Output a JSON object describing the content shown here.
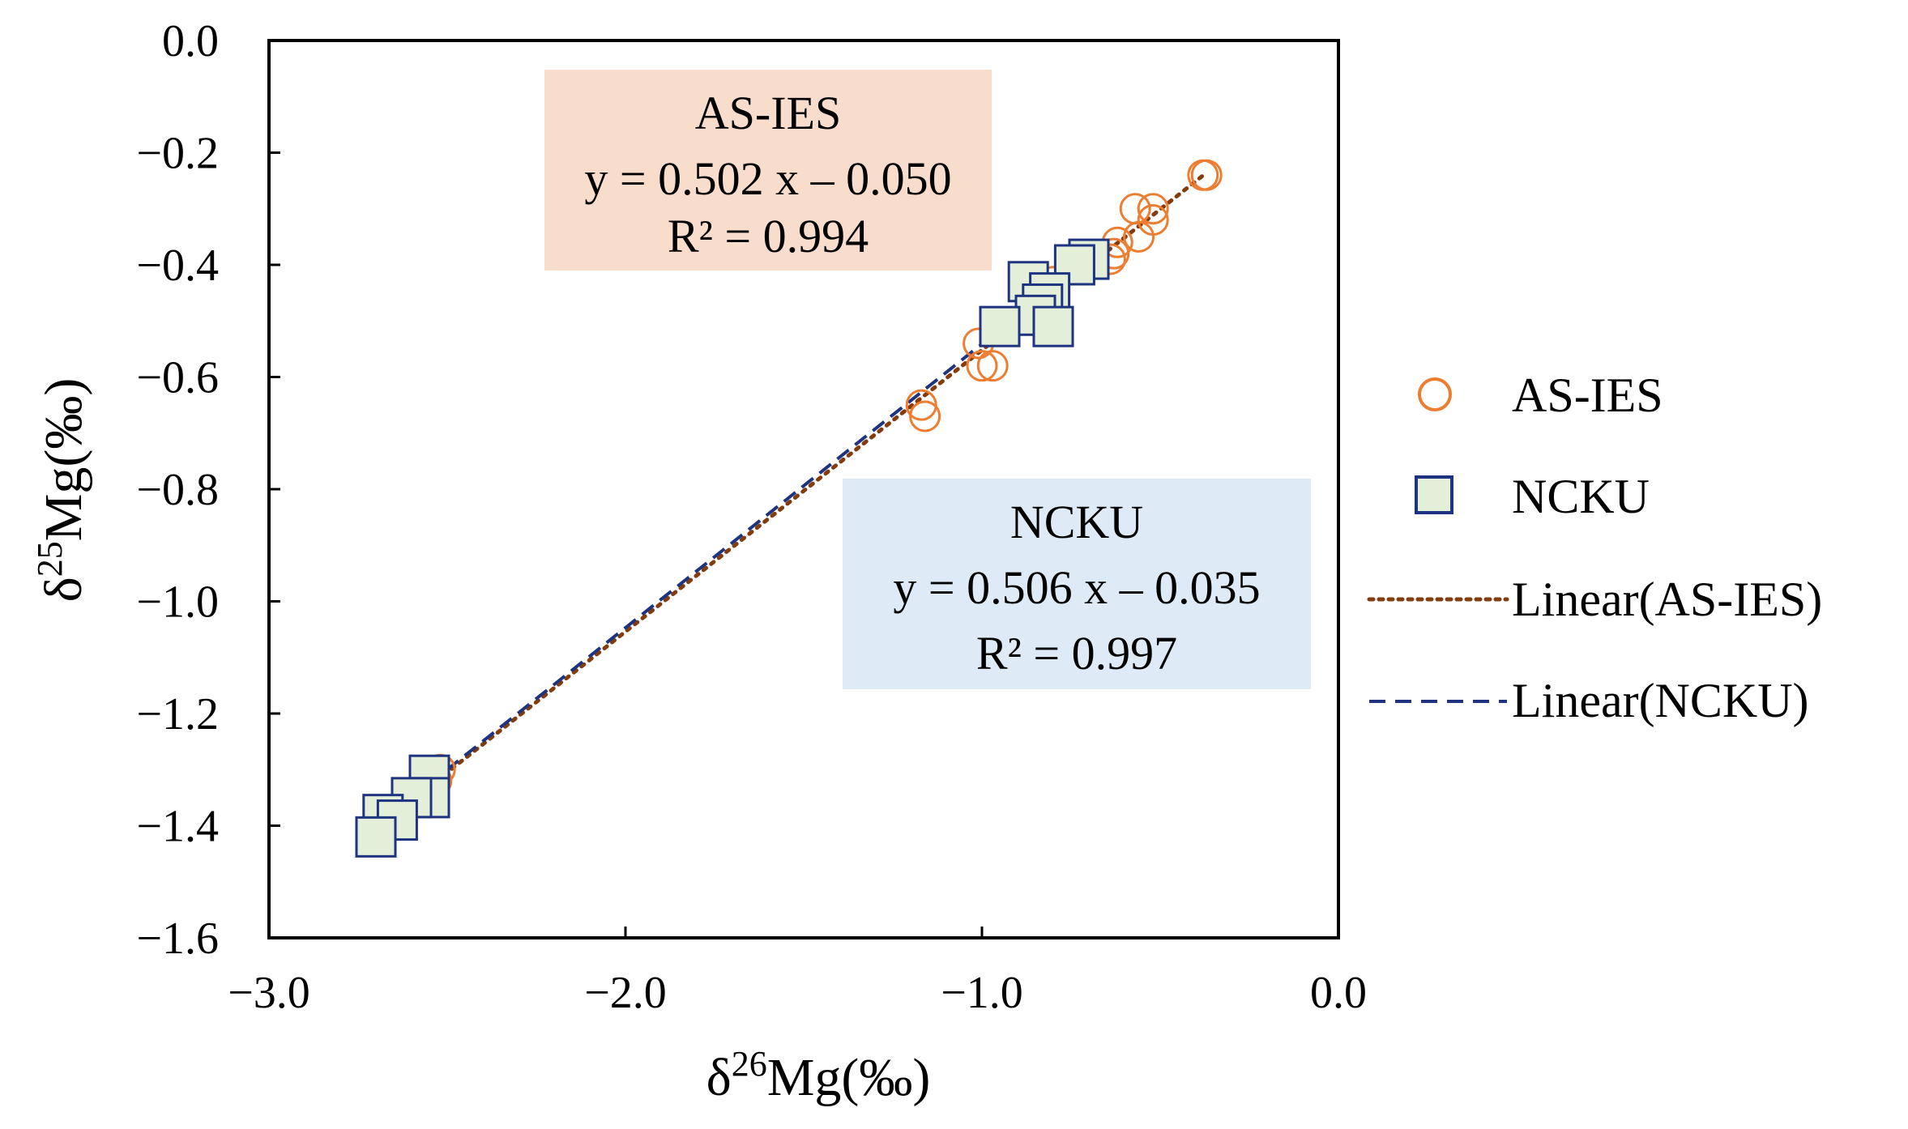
{
  "chart_data": {
    "type": "scatter",
    "xlabel": {
      "prefix": "δ",
      "sup": "26",
      "suffix": "Mg(‰)"
    },
    "ylabel": {
      "prefix": "δ",
      "sup": "25",
      "suffix": "Mg(‰)"
    },
    "xlim": [
      -3.0,
      0.0
    ],
    "ylim": [
      -1.6,
      0.0
    ],
    "xticks": [
      -3.0,
      -2.0,
      -1.0,
      0.0
    ],
    "xtick_labels": [
      "−3.0",
      "−2.0",
      "−1.0",
      "0.0"
    ],
    "yticks": [
      0.0,
      -0.2,
      -0.4,
      -0.6,
      -0.8,
      -1.0,
      -1.2,
      -1.4,
      -1.6
    ],
    "ytick_labels": [
      "0.0",
      "−0.2",
      "−0.4",
      "−0.6",
      "−0.8",
      "−1.0",
      "−1.2",
      "−1.4",
      "−1.6"
    ],
    "grid": false,
    "series": [
      {
        "name": "AS-IES",
        "marker": "open-circle",
        "color": "#ED7D31",
        "points": [
          {
            "x": -0.38,
            "y": -0.24
          },
          {
            "x": -0.37,
            "y": -0.24
          },
          {
            "x": -0.57,
            "y": -0.3
          },
          {
            "x": -0.52,
            "y": -0.3
          },
          {
            "x": -0.52,
            "y": -0.32
          },
          {
            "x": -0.56,
            "y": -0.35
          },
          {
            "x": -0.62,
            "y": -0.36
          },
          {
            "x": -0.63,
            "y": -0.38
          },
          {
            "x": -0.64,
            "y": -0.39
          },
          {
            "x": -0.8,
            "y": -0.43
          },
          {
            "x": -0.84,
            "y": -0.45
          },
          {
            "x": -1.01,
            "y": -0.54
          },
          {
            "x": -1.0,
            "y": -0.58
          },
          {
            "x": -0.97,
            "y": -0.58
          },
          {
            "x": -1.17,
            "y": -0.65
          },
          {
            "x": -1.16,
            "y": -0.67
          },
          {
            "x": -2.52,
            "y": -1.3
          },
          {
            "x": -2.53,
            "y": -1.32
          }
        ]
      },
      {
        "name": "NCKU",
        "marker": "square",
        "color": "#1F3480",
        "fill": "#E4EFDA",
        "points": [
          {
            "x": -0.7,
            "y": -0.39
          },
          {
            "x": -0.74,
            "y": -0.4
          },
          {
            "x": -0.87,
            "y": -0.43
          },
          {
            "x": -0.81,
            "y": -0.45
          },
          {
            "x": -0.83,
            "y": -0.47
          },
          {
            "x": -0.85,
            "y": -0.49
          },
          {
            "x": -0.8,
            "y": -0.51
          },
          {
            "x": -0.95,
            "y": -0.51
          },
          {
            "x": -2.55,
            "y": -1.31
          },
          {
            "x": -2.55,
            "y": -1.35
          },
          {
            "x": -2.6,
            "y": -1.35
          },
          {
            "x": -2.68,
            "y": -1.38
          },
          {
            "x": -2.64,
            "y": -1.39
          },
          {
            "x": -2.7,
            "y": -1.42
          }
        ]
      }
    ],
    "trendlines": [
      {
        "name": "Linear(AS-IES)",
        "style": "dotted",
        "color": "#843C0C",
        "slope": 0.502,
        "intercept": -0.05,
        "x_range": [
          -2.53,
          -0.37
        ]
      },
      {
        "name": "Linear(NCKU)",
        "style": "dashed",
        "color": "#1F3480",
        "slope": 0.506,
        "intercept": -0.035,
        "x_range": [
          -2.7,
          -0.7
        ]
      }
    ],
    "annotations": [
      {
        "name": "asies",
        "lines": [
          "AS-IES",
          "y = 0.502 x – 0.050",
          "R² = 0.994"
        ],
        "background": "#F8DCCC",
        "text_color": "#843C0C"
      },
      {
        "name": "ncku",
        "lines": [
          "NCKU",
          "y = 0.506 x – 0.035",
          "R² = 0.997"
        ],
        "background": "#DEEBF7",
        "text_color": "#1F3480"
      }
    ],
    "legend": {
      "position": "right",
      "entries": [
        "AS-IES",
        "NCKU",
        "Linear(AS-IES)",
        "Linear(NCKU)"
      ]
    }
  }
}
